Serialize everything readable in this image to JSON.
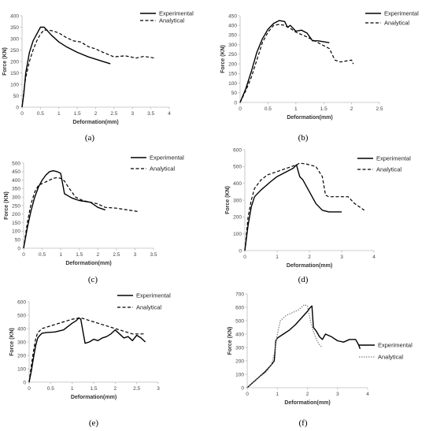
{
  "chart_data": [
    {
      "type": "line",
      "caption": "(a)",
      "xlabel": "Deformation(mm)",
      "ylabel": "Force (KN)",
      "xlim": [
        0,
        4
      ],
      "ylim": [
        0,
        400
      ],
      "xticks": [
        "0",
        "0.5",
        "1",
        "1.5",
        "2",
        "2.5",
        "3",
        "3.5",
        "4"
      ],
      "yticks": [
        "0",
        "50",
        "100",
        "150",
        "200",
        "250",
        "300",
        "350",
        "400"
      ],
      "legend_position": "top-right",
      "series": [
        {
          "name": "Experimental",
          "style": "solid",
          "color": "#000000",
          "x": [
            0,
            0.05,
            0.1,
            0.2,
            0.3,
            0.4,
            0.5,
            0.6,
            0.8,
            1.0,
            1.2,
            1.5,
            1.8,
            2.1,
            2.4
          ],
          "y": [
            0,
            60,
            150,
            240,
            290,
            320,
            350,
            350,
            315,
            285,
            265,
            240,
            220,
            205,
            190
          ]
        },
        {
          "name": "Analytical",
          "style": "dashed",
          "color": "#000000",
          "x": [
            0,
            0.05,
            0.1,
            0.2,
            0.3,
            0.4,
            0.5,
            0.6,
            0.8,
            1.0,
            1.2,
            1.4,
            1.6,
            1.8,
            2.0,
            2.2,
            2.5,
            2.8,
            3.1,
            3.3,
            3.5,
            3.6
          ],
          "y": [
            0,
            70,
            130,
            200,
            250,
            290,
            320,
            338,
            335,
            325,
            305,
            290,
            285,
            265,
            255,
            240,
            220,
            225,
            215,
            222,
            218,
            215
          ]
        }
      ]
    },
    {
      "type": "line",
      "caption": "(b)",
      "xlabel": "Deformation(mm)",
      "ylabel": "Force (KN)",
      "xlim": [
        0,
        2.5
      ],
      "ylim": [
        0,
        450
      ],
      "xticks": [
        "0",
        "0.5",
        "1",
        "1.5",
        "2",
        "2.5"
      ],
      "yticks": [
        "0",
        "50",
        "100",
        "150",
        "200",
        "250",
        "300",
        "350",
        "400",
        "450"
      ],
      "legend_position": "top-right",
      "series": [
        {
          "name": "Experimental",
          "style": "solid",
          "color": "#000000",
          "x": [
            0,
            0.1,
            0.2,
            0.3,
            0.4,
            0.5,
            0.6,
            0.7,
            0.8,
            0.85,
            0.9,
            1.0,
            1.1,
            1.2,
            1.3,
            1.4,
            1.6
          ],
          "y": [
            0,
            70,
            160,
            260,
            330,
            380,
            410,
            425,
            420,
            390,
            400,
            370,
            375,
            360,
            320,
            320,
            310
          ]
        },
        {
          "name": "Analytical",
          "style": "dashed",
          "color": "#000000",
          "x": [
            0,
            0.1,
            0.2,
            0.3,
            0.4,
            0.5,
            0.6,
            0.7,
            0.8,
            0.9,
            1.0,
            1.2,
            1.4,
            1.6,
            1.7,
            1.8,
            1.9,
            2.0,
            2.03
          ],
          "y": [
            0,
            60,
            130,
            220,
            310,
            365,
            400,
            405,
            400,
            385,
            365,
            340,
            310,
            280,
            220,
            210,
            215,
            220,
            200
          ]
        }
      ]
    },
    {
      "type": "line",
      "caption": "(c)",
      "xlabel": "Deformation(mm)",
      "ylabel": "Force (KN)",
      "xlim": [
        0,
        3.5
      ],
      "ylim": [
        0,
        500
      ],
      "xticks": [
        "0",
        "0.5",
        "1",
        "1.5",
        "2",
        "2.5",
        "3",
        "3.5"
      ],
      "yticks": [
        "0",
        "50",
        "100",
        "150",
        "200",
        "250",
        "300",
        "350",
        "400",
        "450",
        "500"
      ],
      "legend_position": "top-right",
      "series": [
        {
          "name": "Experimental",
          "style": "solid",
          "color": "#000000",
          "x": [
            0,
            0.1,
            0.2,
            0.3,
            0.4,
            0.5,
            0.6,
            0.7,
            0.8,
            0.9,
            1.0,
            1.05,
            1.1,
            1.3,
            1.5,
            1.8,
            2.0,
            2.2
          ],
          "y": [
            0,
            120,
            220,
            300,
            360,
            400,
            430,
            450,
            455,
            450,
            440,
            380,
            320,
            295,
            280,
            270,
            240,
            225
          ]
        },
        {
          "name": "Analytical",
          "style": "dashed",
          "color": "#000000",
          "x": [
            0,
            0.1,
            0.2,
            0.3,
            0.4,
            0.5,
            0.6,
            0.7,
            0.8,
            0.9,
            1.0,
            1.1,
            1.2,
            1.4,
            1.6,
            1.8,
            2.0,
            2.2,
            2.5,
            2.8,
            3.1
          ],
          "y": [
            0,
            150,
            260,
            330,
            370,
            380,
            390,
            400,
            410,
            415,
            410,
            395,
            360,
            300,
            280,
            270,
            260,
            240,
            235,
            225,
            215
          ]
        }
      ]
    },
    {
      "type": "line",
      "caption": "(d)",
      "xlabel": "Deformation(mm)",
      "ylabel": "Force (KN)",
      "xlim": [
        0,
        4
      ],
      "ylim": [
        0,
        600
      ],
      "xticks": [
        "0",
        "1",
        "2",
        "3",
        "4"
      ],
      "yticks": [
        "0",
        "100",
        "200",
        "300",
        "400",
        "500",
        "600"
      ],
      "legend_position": "top-right",
      "series": [
        {
          "name": "Experimental",
          "style": "solid",
          "color": "#000000",
          "x": [
            0,
            0.1,
            0.2,
            0.3,
            0.5,
            0.8,
            1.0,
            1.3,
            1.5,
            1.6,
            1.65,
            1.7,
            1.8,
            2.0,
            2.2,
            2.4,
            2.6,
            3.0
          ],
          "y": [
            0,
            150,
            260,
            320,
            360,
            410,
            440,
            470,
            490,
            510,
            475,
            440,
            420,
            350,
            280,
            240,
            230,
            230
          ]
        },
        {
          "name": "Analytical",
          "style": "dashed",
          "color": "#000000",
          "x": [
            0,
            0.1,
            0.2,
            0.3,
            0.5,
            0.7,
            1.0,
            1.3,
            1.6,
            1.7,
            1.9,
            2.2,
            2.4,
            2.5,
            2.6,
            3.0,
            3.2,
            3.4,
            3.7
          ],
          "y": [
            0,
            200,
            300,
            370,
            420,
            450,
            470,
            490,
            510,
            520,
            515,
            500,
            440,
            330,
            320,
            320,
            320,
            280,
            240
          ]
        }
      ]
    },
    {
      "type": "line",
      "caption": "(e)",
      "xlabel": "Deformation(mm)",
      "ylabel": "Force (KN)",
      "xlim": [
        0,
        3
      ],
      "ylim": [
        0,
        600
      ],
      "xticks": [
        "0",
        "0.5",
        "1",
        "1.5",
        "2",
        "2.5",
        "3"
      ],
      "yticks": [
        "0",
        "100",
        "200",
        "300",
        "400",
        "500",
        "600"
      ],
      "legend_position": "top-right",
      "series": [
        {
          "name": "Experimental",
          "style": "solid",
          "color": "#000000",
          "x": [
            0,
            0.05,
            0.1,
            0.15,
            0.2,
            0.25,
            0.3,
            0.4,
            0.6,
            0.8,
            1.0,
            1.1,
            1.15,
            1.2,
            1.25,
            1.3,
            1.4,
            1.5,
            1.6,
            1.7,
            1.8,
            1.9,
            2.0,
            2.1,
            2.2,
            2.3,
            2.4,
            2.5,
            2.6,
            2.7
          ],
          "y": [
            0,
            80,
            180,
            270,
            330,
            350,
            365,
            370,
            375,
            390,
            440,
            460,
            480,
            470,
            380,
            290,
            300,
            320,
            310,
            330,
            340,
            360,
            390,
            360,
            330,
            340,
            310,
            350,
            330,
            300
          ]
        },
        {
          "name": "Analytical",
          "style": "dashed",
          "color": "#000000",
          "x": [
            0,
            0.05,
            0.1,
            0.15,
            0.2,
            0.3,
            0.4,
            0.6,
            0.8,
            1.0,
            1.2,
            1.5,
            1.8,
            2.0,
            2.2,
            2.4,
            2.6,
            2.7
          ],
          "y": [
            0,
            120,
            230,
            320,
            370,
            400,
            410,
            430,
            450,
            470,
            480,
            450,
            420,
            400,
            380,
            360,
            360,
            360
          ]
        }
      ]
    },
    {
      "type": "line",
      "caption": "(f)",
      "xlabel": "Deformation(mm)",
      "ylabel": "Force (KN)",
      "xlim": [
        0,
        4
      ],
      "ylim": [
        0,
        700
      ],
      "xticks": [
        "0",
        "1",
        "2",
        "3",
        "4"
      ],
      "yticks": [
        "0",
        "100",
        "200",
        "300",
        "400",
        "500",
        "600",
        "700"
      ],
      "legend_position": "bottom-right",
      "series": [
        {
          "name": "Experimental",
          "style": "solid",
          "color": "#000000",
          "x": [
            0,
            0.2,
            0.4,
            0.6,
            0.8,
            0.9,
            0.95,
            1.0,
            1.2,
            1.4,
            1.6,
            1.8,
            2.0,
            2.1,
            2.15,
            2.2,
            2.3,
            2.4,
            2.5,
            2.6,
            2.8,
            3.0,
            3.2,
            3.4,
            3.6,
            3.7,
            3.75
          ],
          "y": [
            0,
            40,
            80,
            120,
            170,
            200,
            350,
            370,
            400,
            430,
            470,
            520,
            570,
            600,
            610,
            450,
            420,
            380,
            360,
            400,
            380,
            350,
            340,
            360,
            360,
            320,
            290
          ]
        },
        {
          "name": "Analytical",
          "style": "dotted",
          "color": "#777777",
          "x": [
            0,
            0.2,
            0.4,
            0.6,
            0.8,
            0.9,
            1.0,
            1.1,
            1.3,
            1.5,
            1.7,
            1.8,
            1.9,
            2.0,
            2.1,
            2.2,
            2.3,
            2.4,
            2.5
          ],
          "y": [
            0,
            40,
            80,
            110,
            170,
            250,
            400,
            500,
            540,
            560,
            580,
            600,
            620,
            610,
            500,
            420,
            360,
            320,
            300
          ]
        }
      ]
    }
  ]
}
